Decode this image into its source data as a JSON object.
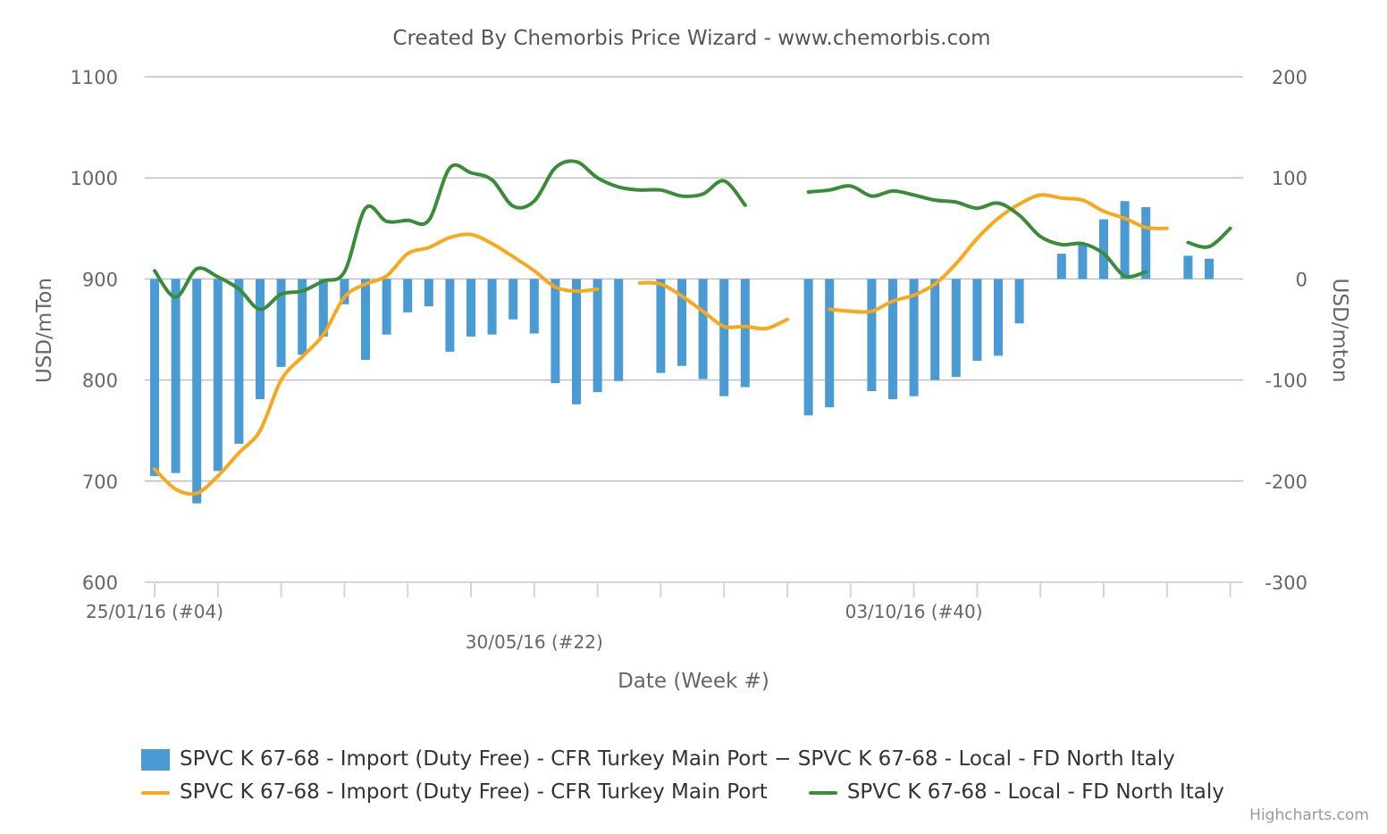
{
  "chart_data": {
    "type": "bar+line",
    "title": "Created By Chemorbis Price Wizard - www.chemorbis.com",
    "xlabel": "Date (Week #)",
    "ylabel_left": "USD/mTon",
    "ylabel_right": "USD/mton",
    "ylim_left": [
      600,
      1100
    ],
    "ylim_right": [
      -300,
      200
    ],
    "yticks_left": [
      "600",
      "700",
      "800",
      "900",
      "1000",
      "1100"
    ],
    "yticks_right": [
      "-300",
      "-200",
      "-100",
      "0",
      "100",
      "200"
    ],
    "xtick_labels": [
      {
        "week": 4,
        "label": "25/01/16 (#04)"
      },
      {
        "week": 22,
        "label": "30/05/16 (#22)"
      },
      {
        "week": 40,
        "label": "03/10/16 (#40)"
      }
    ],
    "x_weeks": [
      4,
      5,
      6,
      7,
      8,
      9,
      10,
      11,
      12,
      13,
      14,
      15,
      16,
      17,
      18,
      19,
      20,
      21,
      22,
      23,
      24,
      25,
      26,
      27,
      28,
      29,
      30,
      31,
      32,
      33,
      34,
      35,
      36,
      37,
      38,
      39,
      40,
      41,
      42,
      43,
      44,
      45,
      46,
      47,
      48,
      49,
      50,
      51,
      52,
      53,
      54,
      55,
      56,
      57
    ],
    "grid": true,
    "legend_position": "bottom",
    "series": [
      {
        "name": "SPVC K 67-68 - Import (Duty Free) - CFR Turkey Main Port − SPVC K 67-68 - Local - FD North Italy",
        "type": "bar",
        "axis": "right",
        "color": "#4a9ad4",
        "values": [
          -195,
          -192,
          -222,
          -190,
          -163,
          -119,
          -87,
          -75,
          -57,
          -25,
          -80,
          -55,
          -33,
          -27,
          -72,
          -57,
          -55,
          -40,
          -54,
          -103,
          -124,
          -112,
          -101,
          null,
          -93,
          -86,
          -99,
          -116,
          -107,
          null,
          null,
          -135,
          -127,
          null,
          -111,
          -119,
          -116,
          -100,
          -97,
          -81,
          -76,
          -44,
          null,
          25,
          35,
          59,
          77,
          71,
          null,
          23,
          20,
          null,
          null,
          null
        ]
      },
      {
        "name": "SPVC K 67-68 - Import (Duty Free) - CFR Turkey Main Port",
        "type": "line",
        "axis": "left",
        "color": "#f7a81b",
        "values": [
          712,
          692,
          688,
          705,
          728,
          750,
          800,
          823,
          845,
          882,
          895,
          903,
          925,
          931,
          941,
          944,
          935,
          922,
          908,
          892,
          888,
          890,
          null,
          896,
          895,
          883,
          868,
          853,
          853,
          851,
          860,
          null,
          870,
          868,
          868,
          878,
          884,
          895,
          915,
          940,
          960,
          974,
          983,
          980,
          978,
          967,
          960,
          951,
          950,
          null,
          null,
          null,
          null,
          null
        ]
      },
      {
        "name": "SPVC K 67-68 - Local - FD North Italy",
        "type": "line",
        "axis": "left",
        "color": "#3b8c3a",
        "values": [
          908,
          882,
          910,
          902,
          890,
          870,
          885,
          888,
          898,
          907,
          970,
          957,
          958,
          958,
          1010,
          1005,
          998,
          972,
          977,
          1010,
          1016,
          1000,
          991,
          988,
          988,
          982,
          984,
          997,
          973,
          null,
          null,
          986,
          988,
          992,
          982,
          987,
          983,
          978,
          976,
          970,
          975,
          963,
          942,
          934,
          935,
          925,
          903,
          907,
          null,
          936,
          932,
          950,
          null,
          null
        ]
      }
    ]
  },
  "legend": {
    "row1": [
      {
        "label": "SPVC K 67-68 - Import (Duty Free) - CFR Turkey Main Port − SPVC K 67-68 - Local - FD North Italy",
        "color": "#4a9ad4"
      }
    ],
    "row2": [
      {
        "label": "SPVC K 67-68 - Import (Duty Free) - CFR Turkey Main Port",
        "color": "#f7a81b"
      },
      {
        "label": "SPVC K 67-68 - Local - FD North Italy",
        "color": "#3b8c3a"
      }
    ]
  },
  "credits": "Highcharts.com"
}
